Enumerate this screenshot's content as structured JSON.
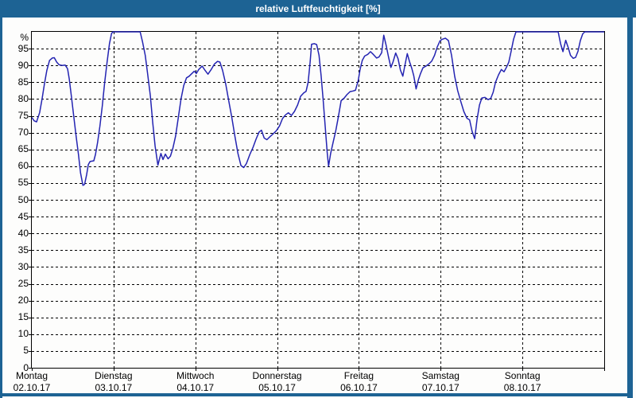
{
  "window": {
    "title": "relative Luftfeuchtigkeit [%]",
    "title_bar_color": "#1d6394",
    "frame_color": "#1d6394"
  },
  "chart_data": {
    "type": "line",
    "title": "relative Luftfeuchtigkeit [%]",
    "unit_label": "%",
    "line_color": "#2424b2",
    "grid": "dashed-black",
    "legend": "none",
    "ylim": [
      0,
      100
    ],
    "ytick_step": 5,
    "ytick_labels": [
      "95",
      "90",
      "85",
      "80",
      "75",
      "70",
      "65",
      "60",
      "55",
      "50",
      "45",
      "40",
      "35",
      "30",
      "25",
      "20",
      "15",
      "10",
      "5",
      "0"
    ],
    "hours_total": 168,
    "x_days": [
      {
        "name": "Montag",
        "date": "02.10.17"
      },
      {
        "name": "Dienstag",
        "date": "03.10.17"
      },
      {
        "name": "Mittwoch",
        "date": "04.10.17"
      },
      {
        "name": "Donnerstag",
        "date": "05.10.17"
      },
      {
        "name": "Freitag",
        "date": "06.10.17"
      },
      {
        "name": "Samstag",
        "date": "07.10.17"
      },
      {
        "name": "Sonntag",
        "date": "08.10.17"
      }
    ],
    "series": [
      {
        "name": "relative Luftfeuchtigkeit",
        "points": [
          [
            0,
            74.5
          ],
          [
            0.7,
            73.5
          ],
          [
            1.4,
            73.2
          ],
          [
            2.3,
            76
          ],
          [
            3,
            80
          ],
          [
            3.7,
            84.5
          ],
          [
            4.4,
            88.5
          ],
          [
            5.2,
            91.5
          ],
          [
            6,
            92.2
          ],
          [
            6.6,
            92.3
          ],
          [
            7.3,
            91
          ],
          [
            8,
            90.2
          ],
          [
            8.9,
            90
          ],
          [
            9.8,
            90.1
          ],
          [
            10.5,
            89
          ],
          [
            11,
            86
          ],
          [
            11.6,
            81
          ],
          [
            12.3,
            75
          ],
          [
            13,
            69
          ],
          [
            13.7,
            63.5
          ],
          [
            14.3,
            58
          ],
          [
            15,
            54.3
          ],
          [
            15.5,
            54.6
          ],
          [
            16.1,
            57.5
          ],
          [
            16.6,
            60.5
          ],
          [
            17.1,
            61.4
          ],
          [
            18.2,
            61.6
          ],
          [
            18.7,
            63.5
          ],
          [
            19.3,
            67
          ],
          [
            20,
            72
          ],
          [
            20.7,
            78
          ],
          [
            21.4,
            85
          ],
          [
            22.1,
            91
          ],
          [
            22.8,
            96.5
          ],
          [
            23.4,
            99.5
          ],
          [
            23.8,
            100
          ],
          [
            31.8,
            100
          ],
          [
            32.5,
            97
          ],
          [
            33.3,
            93
          ],
          [
            34,
            87.5
          ],
          [
            34.8,
            81
          ],
          [
            35.5,
            73
          ],
          [
            36.2,
            66
          ],
          [
            37,
            60.3
          ],
          [
            37.9,
            63.8
          ],
          [
            38.5,
            62
          ],
          [
            39.2,
            63.6
          ],
          [
            40,
            62.2
          ],
          [
            40.7,
            63
          ],
          [
            41.4,
            65.3
          ],
          [
            42.2,
            69
          ],
          [
            43,
            74.5
          ],
          [
            43.8,
            80
          ],
          [
            44.6,
            84
          ],
          [
            45.4,
            86.3
          ],
          [
            46.2,
            86.8
          ],
          [
            47,
            87.6
          ],
          [
            47.7,
            88.3
          ],
          [
            48.3,
            87.6
          ],
          [
            49,
            88.8
          ],
          [
            50,
            89.8
          ],
          [
            50.8,
            88.6
          ],
          [
            51.7,
            87.4
          ],
          [
            52.6,
            88.7
          ],
          [
            53.6,
            90.4
          ],
          [
            54.5,
            91.2
          ],
          [
            55.2,
            91
          ],
          [
            56,
            88.5
          ],
          [
            56.9,
            84.5
          ],
          [
            57.8,
            79.5
          ],
          [
            58.7,
            74.5
          ],
          [
            59.6,
            69
          ],
          [
            60.5,
            63.8
          ],
          [
            61.4,
            60.2
          ],
          [
            62.2,
            59.6
          ],
          [
            63,
            60.8
          ],
          [
            64,
            63.5
          ],
          [
            64.9,
            65.5
          ],
          [
            65.8,
            68
          ],
          [
            66.7,
            70.2
          ],
          [
            67.4,
            70.7
          ],
          [
            68.2,
            68.4
          ],
          [
            69,
            67.9
          ],
          [
            69.9,
            68.8
          ],
          [
            70.8,
            69.6
          ],
          [
            71.8,
            70.6
          ],
          [
            72.7,
            72
          ],
          [
            73.6,
            74.2
          ],
          [
            74.5,
            75.3
          ],
          [
            75.3,
            75.9
          ],
          [
            76.2,
            75.1
          ],
          [
            77.1,
            76.3
          ],
          [
            78,
            78.2
          ],
          [
            78.9,
            80.8
          ],
          [
            79.8,
            81.8
          ],
          [
            80.5,
            82.3
          ],
          [
            81.1,
            85
          ],
          [
            81.7,
            91
          ],
          [
            82.1,
            96.3
          ],
          [
            82.9,
            96.5
          ],
          [
            83.6,
            96.2
          ],
          [
            84.3,
            93
          ],
          [
            84.9,
            87
          ],
          [
            85.5,
            80
          ],
          [
            86.1,
            72
          ],
          [
            86.7,
            64
          ],
          [
            87.1,
            60
          ],
          [
            87.7,
            63.8
          ],
          [
            88.4,
            67
          ],
          [
            89.2,
            70.5
          ],
          [
            90,
            74.8
          ],
          [
            90.8,
            79.5
          ],
          [
            91.6,
            80.2
          ],
          [
            92.5,
            81.3
          ],
          [
            93.4,
            82.2
          ],
          [
            94.3,
            82.4
          ],
          [
            95,
            82.6
          ],
          [
            95.8,
            85.5
          ],
          [
            96.4,
            89
          ],
          [
            97,
            91.5
          ],
          [
            97.7,
            92.8
          ],
          [
            98.6,
            93.3
          ],
          [
            99.4,
            94.1
          ],
          [
            100.3,
            93.2
          ],
          [
            101.2,
            92.2
          ],
          [
            101.9,
            92.5
          ],
          [
            102.7,
            93.8
          ],
          [
            103.3,
            99
          ],
          [
            104,
            96
          ],
          [
            104.7,
            92.5
          ],
          [
            105.4,
            89.4
          ],
          [
            106,
            91
          ],
          [
            106.8,
            93.7
          ],
          [
            107.5,
            92
          ],
          [
            108.2,
            88.6
          ],
          [
            108.9,
            86.8
          ],
          [
            109.6,
            90.5
          ],
          [
            110.2,
            93.5
          ],
          [
            110.9,
            91
          ],
          [
            111.5,
            89.2
          ],
          [
            112.1,
            87
          ],
          [
            112.8,
            83
          ],
          [
            113.5,
            85.8
          ],
          [
            114.1,
            87.6
          ],
          [
            114.8,
            89.3
          ],
          [
            115.7,
            89.8
          ],
          [
            116.6,
            90.5
          ],
          [
            117.4,
            91.3
          ],
          [
            118.2,
            93
          ],
          [
            119,
            95.5
          ],
          [
            119.8,
            97.3
          ],
          [
            120.5,
            97.8
          ],
          [
            121.4,
            98.1
          ],
          [
            122.3,
            97.4
          ],
          [
            123.2,
            93
          ],
          [
            124.1,
            86.8
          ],
          [
            125,
            82.5
          ],
          [
            125.9,
            79.3
          ],
          [
            126.8,
            76.3
          ],
          [
            127.7,
            74.3
          ],
          [
            128.5,
            73.8
          ],
          [
            129.2,
            70.5
          ],
          [
            130,
            68.2
          ],
          [
            130.7,
            74
          ],
          [
            131.4,
            78.2
          ],
          [
            132.1,
            80.3
          ],
          [
            133,
            80.5
          ],
          [
            133.9,
            79.8
          ],
          [
            134.7,
            80.2
          ],
          [
            135.4,
            82
          ],
          [
            136.1,
            85
          ],
          [
            137,
            87.2
          ],
          [
            137.8,
            88.8
          ],
          [
            138.6,
            88.1
          ],
          [
            139.3,
            89.4
          ],
          [
            140,
            91
          ],
          [
            140.7,
            94.3
          ],
          [
            141.4,
            97.8
          ],
          [
            142.1,
            100
          ],
          [
            154.5,
            100
          ],
          [
            155.2,
            96.5
          ],
          [
            155.9,
            94.1
          ],
          [
            156.7,
            97.5
          ],
          [
            157.4,
            95.4
          ],
          [
            158.1,
            93
          ],
          [
            158.9,
            92.1
          ],
          [
            159.6,
            92.4
          ],
          [
            160.3,
            94.2
          ],
          [
            161,
            97.4
          ],
          [
            161.7,
            99.4
          ],
          [
            162.3,
            100
          ],
          [
            168,
            100
          ]
        ]
      }
    ]
  }
}
